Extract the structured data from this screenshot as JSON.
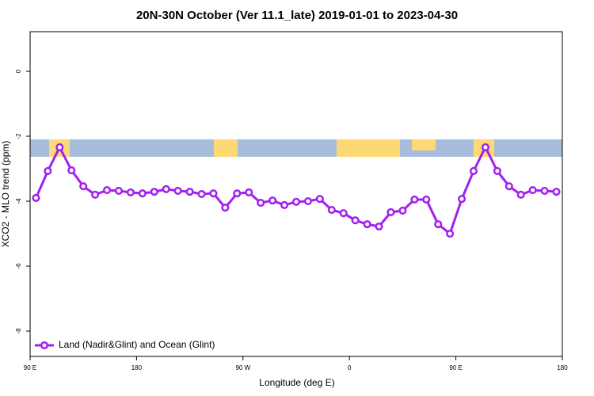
{
  "chart_data": {
    "type": "line",
    "title": "20N-30N October (Ver 11.1_late)   2019-01-01 to 2023-04-30",
    "x_label": "Longitude (deg E)",
    "y_label": "XCO2 - MLO trend (ppm)",
    "x": [
      95,
      105,
      115,
      125,
      135,
      145,
      155,
      165,
      175,
      185,
      195,
      205,
      215,
      225,
      235,
      245,
      255,
      265,
      275,
      285,
      295,
      305,
      315,
      325,
      335,
      345,
      355,
      365,
      375,
      385,
      395,
      405,
      415,
      425,
      435,
      445,
      455,
      465,
      475,
      485,
      495,
      505,
      515,
      525,
      535
    ],
    "series": [
      {
        "name": "Land (Nadir&Glint) and Ocean (Glint)",
        "color": "#a020f0",
        "values": [
          -3.9,
          -3.07,
          -2.34,
          -3.05,
          -3.54,
          -3.8,
          -3.66,
          -3.68,
          -3.73,
          -3.76,
          -3.71,
          -3.63,
          -3.68,
          -3.71,
          -3.78,
          -3.76,
          -4.2,
          -3.76,
          -3.73,
          -4.05,
          -3.98,
          -4.12,
          -4.02,
          -4.0,
          -3.93,
          -4.27,
          -4.37,
          -4.59,
          -4.71,
          -4.78,
          -4.34,
          -4.29,
          -3.95,
          -3.95,
          -4.71,
          -5.0,
          -3.93,
          -3.07,
          -2.34,
          -3.07,
          -3.54,
          -3.8,
          -3.66,
          -3.68,
          -3.71
        ]
      }
    ],
    "xlim": [
      90,
      540
    ],
    "xticks": [
      {
        "value": 90,
        "label": "90 E"
      },
      {
        "value": 180,
        "label": "180"
      },
      {
        "value": 270,
        "label": "90 W"
      },
      {
        "value": 360,
        "label": "0"
      },
      {
        "value": 450,
        "label": "90 E"
      },
      {
        "value": 540,
        "label": "180"
      }
    ],
    "ylim": [
      -8.78,
      1.22
    ],
    "yticks": [
      0,
      -2,
      -4,
      -6,
      -8
    ],
    "legend": "bottom-left"
  }
}
